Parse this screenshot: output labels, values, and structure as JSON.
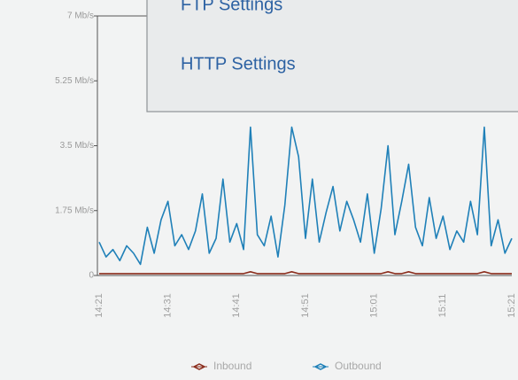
{
  "menu": {
    "items": [
      "FTP Settings",
      "HTTP Settings"
    ]
  },
  "chart_data": {
    "type": "line",
    "categories": [
      "14:21",
      null,
      null,
      null,
      null,
      null,
      null,
      null,
      null,
      null,
      "14:31",
      null,
      null,
      null,
      null,
      null,
      null,
      null,
      null,
      null,
      "14:41",
      null,
      null,
      null,
      null,
      null,
      null,
      null,
      null,
      null,
      "14:51",
      null,
      null,
      null,
      null,
      null,
      null,
      null,
      null,
      null,
      "15:01",
      null,
      null,
      null,
      null,
      null,
      null,
      null,
      null,
      null,
      "15:11",
      null,
      null,
      null,
      null,
      null,
      null,
      null,
      null,
      null,
      "15:21"
    ],
    "series": [
      {
        "name": "Inbound",
        "color": "#8b2e1e",
        "values": [
          0.05,
          0.05,
          0.05,
          0.05,
          0.05,
          0.05,
          0.05,
          0.05,
          0.05,
          0.05,
          0.05,
          0.05,
          0.05,
          0.05,
          0.05,
          0.05,
          0.05,
          0.05,
          0.05,
          0.05,
          0.05,
          0.05,
          0.1,
          0.05,
          0.05,
          0.05,
          0.05,
          0.05,
          0.1,
          0.05,
          0.05,
          0.05,
          0.05,
          0.05,
          0.05,
          0.05,
          0.05,
          0.05,
          0.05,
          0.05,
          0.05,
          0.05,
          0.1,
          0.05,
          0.05,
          0.1,
          0.05,
          0.05,
          0.05,
          0.05,
          0.05,
          0.05,
          0.05,
          0.05,
          0.05,
          0.05,
          0.1,
          0.05,
          0.05,
          0.05,
          0.05
        ]
      },
      {
        "name": "Outbound",
        "color": "#1f80b8",
        "values": [
          0.9,
          0.5,
          0.7,
          0.4,
          0.8,
          0.6,
          0.3,
          1.3,
          0.6,
          1.5,
          2.0,
          0.8,
          1.1,
          0.7,
          1.2,
          2.2,
          0.6,
          1.0,
          2.6,
          0.9,
          1.4,
          0.7,
          4.0,
          1.1,
          0.8,
          1.6,
          0.5,
          1.9,
          4.0,
          3.2,
          1.0,
          2.6,
          0.9,
          1.7,
          2.4,
          1.2,
          2.0,
          1.5,
          0.9,
          2.2,
          0.6,
          1.8,
          3.5,
          1.1,
          2.0,
          3.0,
          1.3,
          0.8,
          2.1,
          1.0,
          1.6,
          0.7,
          1.2,
          0.9,
          2.0,
          1.1,
          4.0,
          0.8,
          1.5,
          0.6,
          1.0
        ]
      }
    ],
    "ylim": [
      0,
      7
    ],
    "yticks": [
      0,
      {
        "value": 1.75,
        "label": "1.75 Mb/s"
      },
      {
        "value": 3.5,
        "label": "3.5 Mb/s"
      },
      {
        "value": 5.25,
        "label": "5.25 Mb/s"
      },
      {
        "value": 7,
        "label": "7 Mb/s"
      }
    ],
    "grid": false
  }
}
